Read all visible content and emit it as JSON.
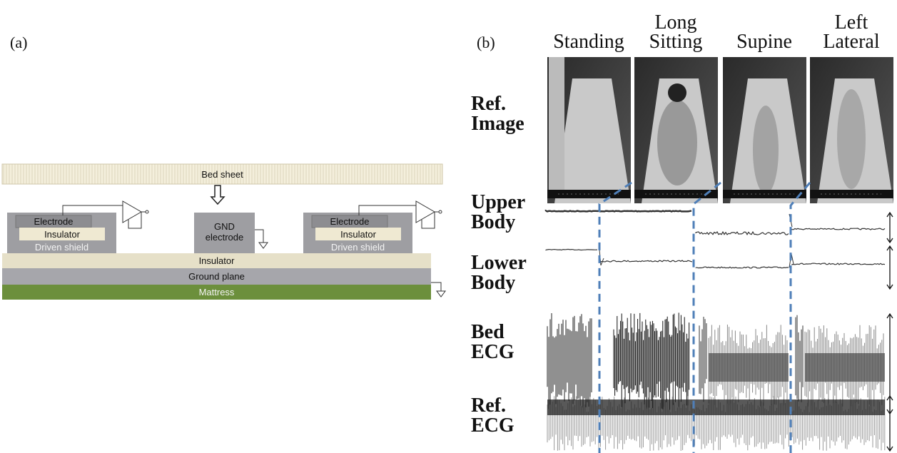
{
  "panel_a": {
    "label": "(a)",
    "bed_sheet": "Bed sheet",
    "left_sensor": {
      "electrode": "Electrode",
      "insulator": "Insulator",
      "shield": "Driven shield"
    },
    "gnd_electrode": "GND electrode",
    "right_sensor": {
      "electrode": "Electrode",
      "insulator": "Insulator",
      "shield": "Driven shield"
    },
    "insulator": "Insulator",
    "ground_plane": "Ground plane",
    "mattress": "Mattress"
  },
  "panel_b": {
    "label": "(b)",
    "postures": [
      "Standing",
      "Long Sitting",
      "Supine",
      "Left Lateral"
    ],
    "rows": [
      "Ref. Image",
      "Upper Body",
      "Lower Body",
      "Bed ECG",
      "Ref. ECG"
    ]
  }
}
